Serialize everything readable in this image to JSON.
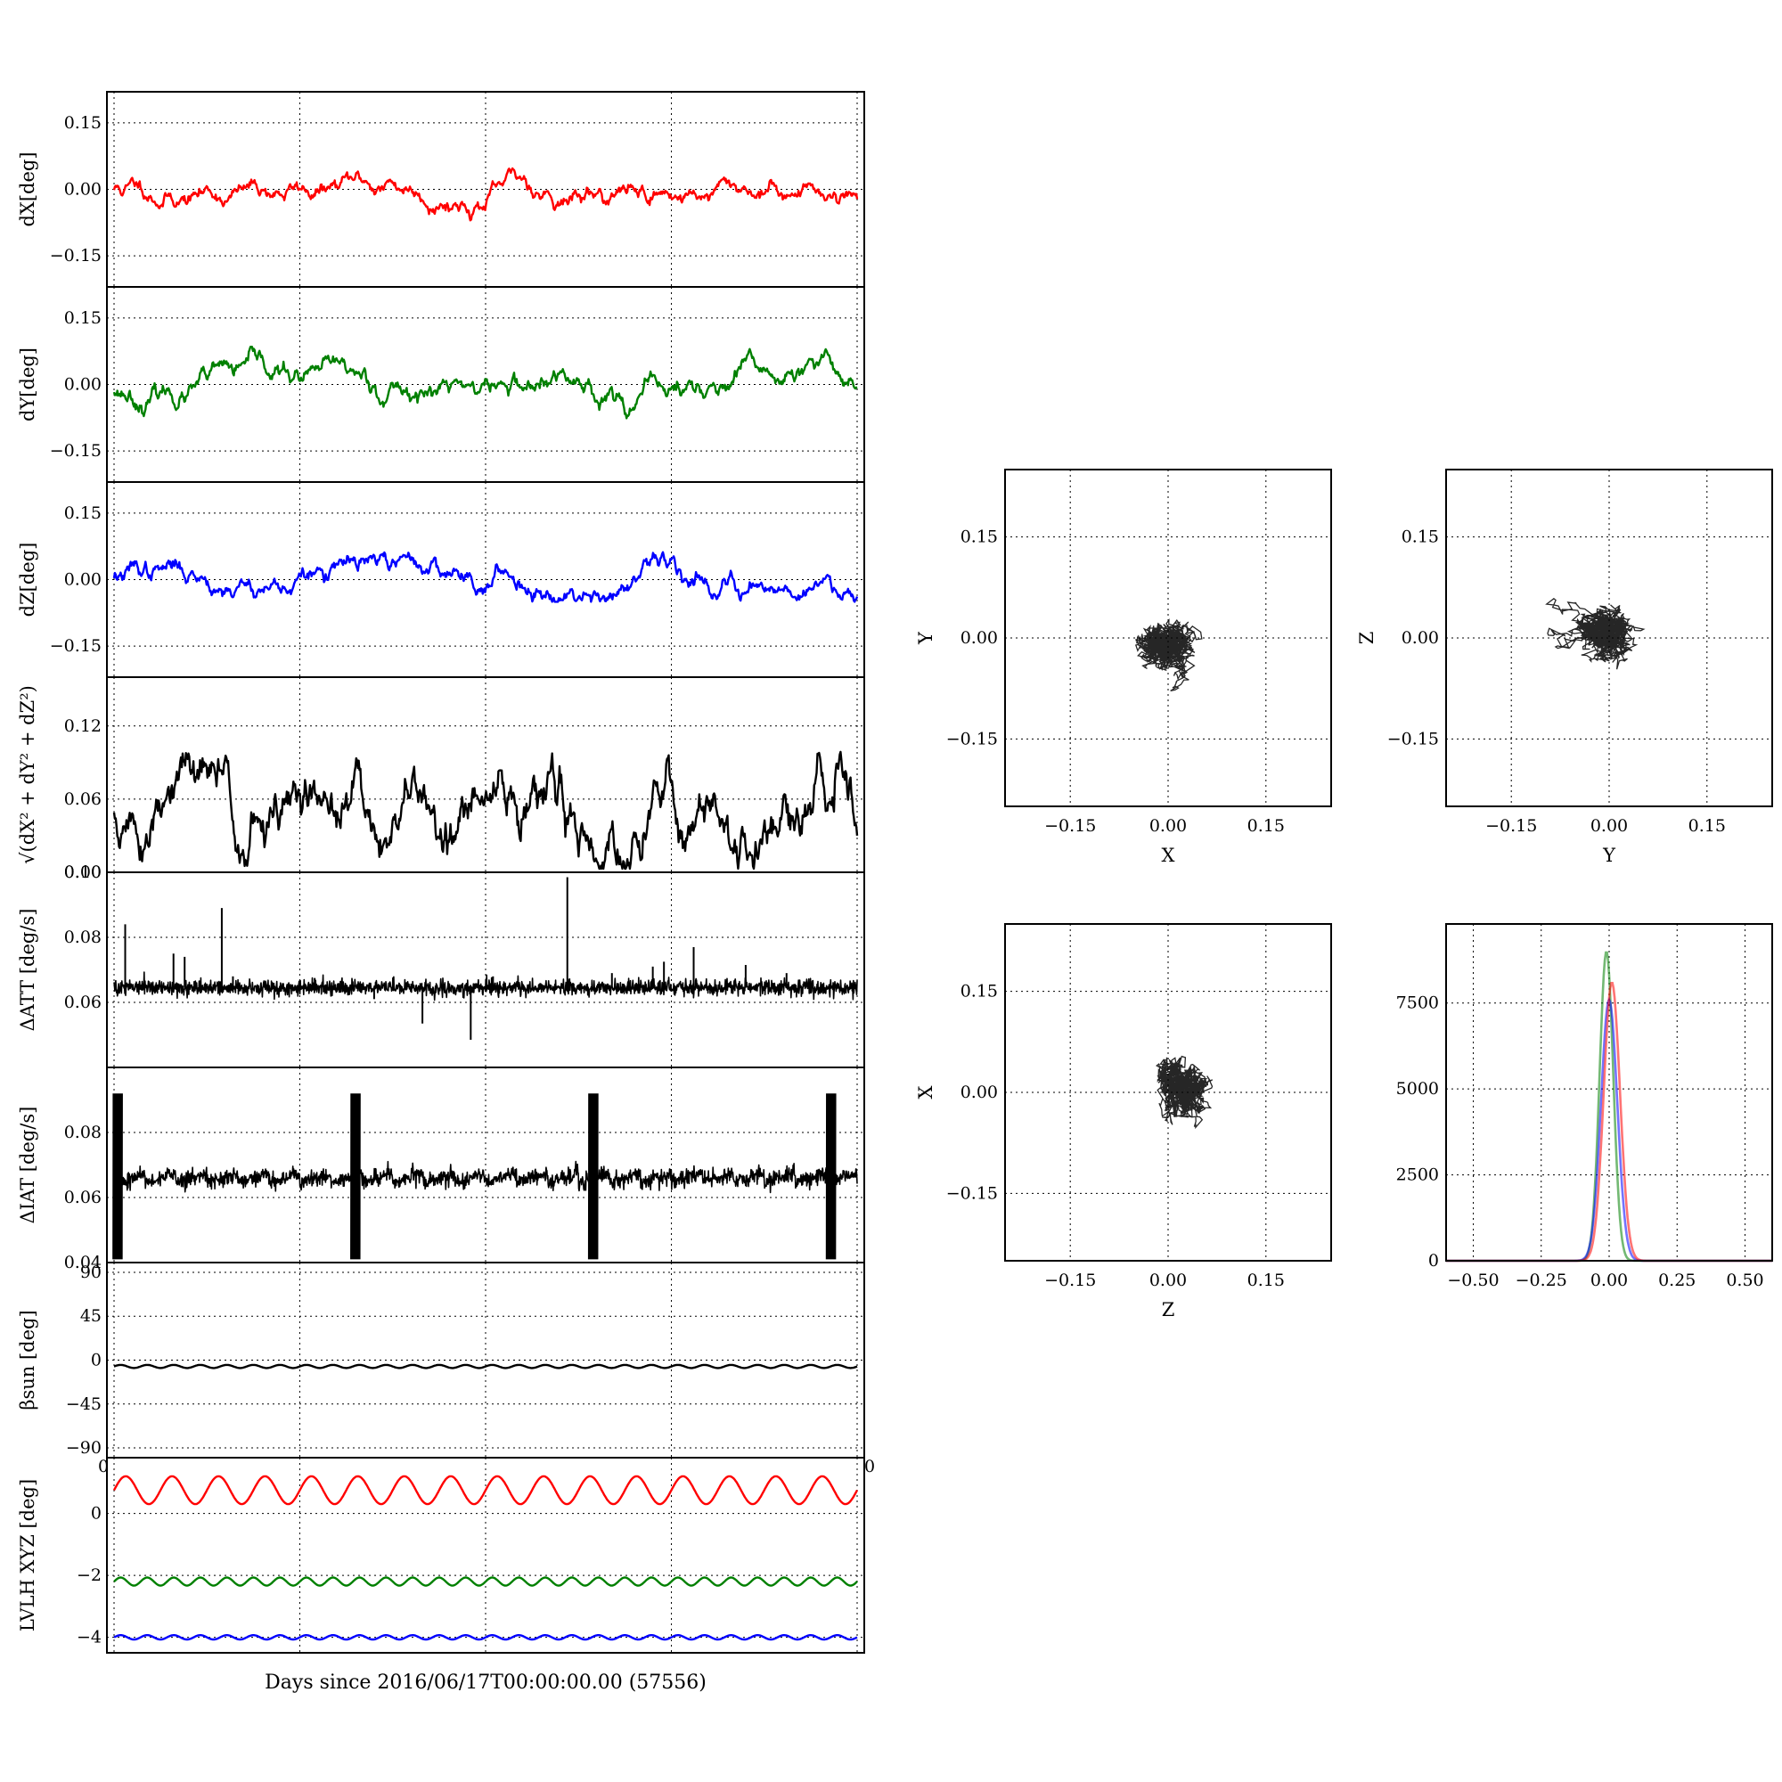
{
  "figure": {
    "xlabel": "Days since 2016/06/17T00:00:00.00 (57556)",
    "colors": {
      "x": "#ff0000",
      "y": "#008000",
      "z": "#0000ff",
      "k": "#000000"
    }
  },
  "timeseries_panels": [
    {
      "id": "dx",
      "ylabel": "dX[deg]",
      "color": "#ff0000",
      "ylim": [
        -0.22,
        0.22
      ],
      "yticks": [
        "0.15",
        "0.00",
        "−0.15"
      ],
      "ytick_values": [
        0.15,
        0,
        -0.15
      ],
      "xticks": [],
      "xtick_labels": [],
      "mode": "walk",
      "walk": {
        "mean": 0.0,
        "amp": 0.025,
        "seed": 11,
        "min": -0.09,
        "max": 0.065
      }
    },
    {
      "id": "dy",
      "ylabel": "dY[deg]",
      "color": "#008000",
      "ylim": [
        -0.22,
        0.22
      ],
      "yticks": [
        "0.15",
        "0.00",
        "−0.15"
      ],
      "ytick_values": [
        0.15,
        0,
        -0.15
      ],
      "xticks": [],
      "xtick_labels": [],
      "mode": "walk",
      "walk": {
        "mean": -0.01,
        "amp": 0.03,
        "seed": 23,
        "min": -0.12,
        "max": 0.085
      }
    },
    {
      "id": "dz",
      "ylabel": "dZ[deg]",
      "color": "#0000ff",
      "ylim": [
        -0.22,
        0.22
      ],
      "yticks": [
        "0.15",
        "0.00",
        "−0.15"
      ],
      "ytick_values": [
        0.15,
        0,
        -0.15
      ],
      "xticks": [],
      "xtick_labels": [],
      "mode": "walk",
      "walk": {
        "mean": 0.01,
        "amp": 0.028,
        "seed": 37,
        "min": -0.05,
        "max": 0.09
      }
    },
    {
      "id": "dr",
      "ylabel": "√(dX² + dY² + dZ²)",
      "color": "#000000",
      "ylim": [
        0.0,
        0.16
      ],
      "yticks": [
        "0.12",
        "0.06",
        "0.00"
      ],
      "ytick_values": [
        0.12,
        0.06,
        0.0
      ],
      "xticks": [],
      "xtick_labels": [],
      "mode": "walk",
      "walk": {
        "mean": 0.04,
        "amp": 0.03,
        "seed": 51,
        "min": 0.003,
        "max": 0.122
      }
    },
    {
      "id": "datt",
      "ylabel": "ΔATT [deg/s]",
      "color": "#000000",
      "ylim": [
        0.04,
        0.1
      ],
      "yticks": [
        "0.10",
        "0.08",
        "0.06"
      ],
      "ytick_values": [
        0.1,
        0.08,
        0.06
      ],
      "xticks": [],
      "xtick_labels": [],
      "mode": "spiky",
      "base": 0.0645,
      "noise": 0.0012,
      "spikes": [
        {
          "x": 0.015,
          "y": 0.084
        },
        {
          "x": 0.08,
          "y": 0.075
        },
        {
          "x": 0.095,
          "y": 0.074
        },
        {
          "x": 0.145,
          "y": 0.089
        },
        {
          "x": 0.16,
          "y": 0.068
        },
        {
          "x": 0.27,
          "y": 0.0675
        },
        {
          "x": 0.35,
          "y": 0.061
        },
        {
          "x": 0.415,
          "y": 0.0535
        },
        {
          "x": 0.48,
          "y": 0.0485
        },
        {
          "x": 0.51,
          "y": 0.068
        },
        {
          "x": 0.61,
          "y": 0.0985
        },
        {
          "x": 0.67,
          "y": 0.069
        },
        {
          "x": 0.725,
          "y": 0.071
        },
        {
          "x": 0.74,
          "y": 0.0725
        },
        {
          "x": 0.78,
          "y": 0.077
        },
        {
          "x": 0.85,
          "y": 0.0715
        },
        {
          "x": 0.905,
          "y": 0.069
        }
      ]
    },
    {
      "id": "diat",
      "ylabel": "ΔIAT [deg/s]",
      "color": "#000000",
      "ylim": [
        0.04,
        0.1
      ],
      "yticks": [
        "0.08",
        "0.06",
        "0.04"
      ],
      "ytick_values": [
        0.08,
        0.06,
        0.04
      ],
      "xticks": [],
      "xtick_labels": [],
      "mode": "bursts",
      "base": 0.0645,
      "noise": 0.0012,
      "bursts": [
        0.005,
        0.325,
        0.645,
        0.965
      ],
      "burst_range": [
        0.041,
        0.092
      ]
    },
    {
      "id": "beta",
      "ylabel": "βsun [deg]",
      "color": "#000000",
      "ylim": [
        -100,
        100
      ],
      "yticks": [
        "90",
        "45",
        "0",
        "−45",
        "−90"
      ],
      "ytick_values": [
        90,
        45,
        0,
        -45,
        -90
      ],
      "xticks": [],
      "xtick_labels": [],
      "mode": "sine",
      "sine": {
        "mean": -6.5,
        "amp": 1.6,
        "cycles": 28
      }
    },
    {
      "id": "lvlh",
      "ylabel": "LVLH XYZ [deg]",
      "color": "#000000",
      "ylim": [
        -4.5,
        1.8
      ],
      "yticks": [
        "0",
        "−2",
        "−4"
      ],
      "ytick_values": [
        0,
        -2,
        -4
      ],
      "xticks": [
        "0",
        "0"
      ],
      "xtick_labels": [
        "0",
        "0"
      ],
      "mode": "multi-sine",
      "series": [
        {
          "name": "",
          "color": "#ff0000",
          "mean": 0.75,
          "amp": 0.45,
          "cycles": 16
        },
        {
          "name": "",
          "color": "#008000",
          "mean": -2.2,
          "amp": 0.13,
          "cycles": 28
        },
        {
          "name": "",
          "color": "#0000ff",
          "mean": -4.0,
          "amp": 0.07,
          "cycles": 28
        }
      ]
    }
  ],
  "scatter_panels": [
    {
      "id": "xy",
      "type": "scatter",
      "xlabel": "X",
      "ylabel": "Y",
      "xlim": [
        -0.25,
        0.25
      ],
      "ylim": [
        -0.25,
        0.25
      ],
      "ticks": [
        "−0.15",
        "0.00",
        "0.15"
      ],
      "tick_values": [
        -0.15,
        0,
        0.15
      ],
      "cloud": {
        "cx": 0.0,
        "cy": -0.015,
        "sx": 0.025,
        "sy": 0.022,
        "seed": 71
      }
    },
    {
      "id": "yz",
      "type": "scatter",
      "xlabel": "Y",
      "ylabel": "Z",
      "xlim": [
        -0.25,
        0.25
      ],
      "ylim": [
        -0.25,
        0.25
      ],
      "ticks": [
        "−0.15",
        "0.00",
        "0.15"
      ],
      "tick_values": [
        -0.15,
        0,
        0.15
      ],
      "cloud": {
        "cx": -0.01,
        "cy": 0.01,
        "sx": 0.028,
        "sy": 0.02,
        "seed": 83
      }
    },
    {
      "id": "zx",
      "type": "scatter",
      "xlabel": "Z",
      "ylabel": "X",
      "xlim": [
        -0.25,
        0.25
      ],
      "ylim": [
        -0.25,
        0.25
      ],
      "ticks": [
        "−0.15",
        "0.00",
        "0.15"
      ],
      "tick_values": [
        -0.15,
        0,
        0.15
      ],
      "cloud": {
        "cx": 0.02,
        "cy": 0.005,
        "sx": 0.02,
        "sy": 0.025,
        "seed": 97
      }
    }
  ],
  "histogram": {
    "type": "line",
    "xlim": [
      -0.6,
      0.6
    ],
    "ylim": [
      0,
      9800
    ],
    "xticks": [
      "−0.50",
      "−0.25",
      "0.00",
      "0.25",
      "0.50"
    ],
    "xtick_values": [
      -0.5,
      -0.25,
      0.0,
      0.25,
      0.5
    ],
    "yticks": [
      "7500",
      "5000",
      "2500",
      "0"
    ],
    "ytick_values": [
      7500,
      5000,
      2500,
      0
    ],
    "series": [
      {
        "name": "",
        "color": "#008000",
        "center": -0.01,
        "width": 0.025,
        "peak": 9000
      },
      {
        "name": "",
        "color": "#0000ff",
        "center": 0.0,
        "width": 0.03,
        "peak": 7600
      },
      {
        "name": "",
        "color": "#ff0000",
        "center": 0.01,
        "width": 0.03,
        "peak": 8100
      }
    ]
  }
}
